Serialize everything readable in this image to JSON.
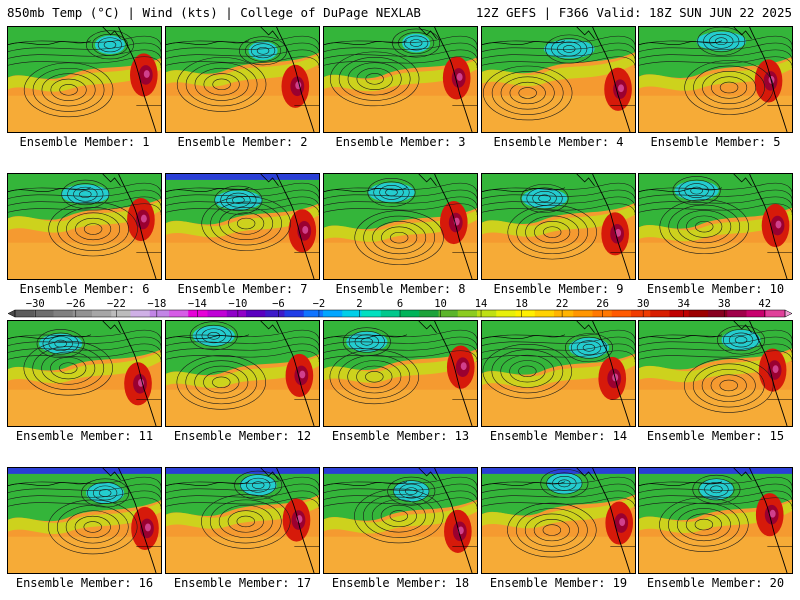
{
  "header": {
    "left": "850mb Temp (°C) | Wind (kts) | College of DuPage NEXLAB",
    "right": "12Z GEFS | F366 Valid: 18Z SUN JUN 22 2025"
  },
  "panel_caption_prefix": "Ensemble Member:",
  "members": [
    {
      "number": "1",
      "label": "Ensemble Member: 1"
    },
    {
      "number": "2",
      "label": "Ensemble Member: 2"
    },
    {
      "number": "3",
      "label": "Ensemble Member: 3"
    },
    {
      "number": "4",
      "label": "Ensemble Member: 4"
    },
    {
      "number": "5",
      "label": "Ensemble Member: 5"
    },
    {
      "number": "6",
      "label": "Ensemble Member: 6"
    },
    {
      "number": "7",
      "label": "Ensemble Member: 7"
    },
    {
      "number": "8",
      "label": "Ensemble Member: 8"
    },
    {
      "number": "9",
      "label": "Ensemble Member: 9"
    },
    {
      "number": "10",
      "label": "Ensemble Member: 10"
    },
    {
      "number": "11",
      "label": "Ensemble Member: 11"
    },
    {
      "number": "12",
      "label": "Ensemble Member: 12"
    },
    {
      "number": "13",
      "label": "Ensemble Member: 13"
    },
    {
      "number": "14",
      "label": "Ensemble Member: 14"
    },
    {
      "number": "15",
      "label": "Ensemble Member: 15"
    },
    {
      "number": "16",
      "label": "Ensemble Member: 16"
    },
    {
      "number": "17",
      "label": "Ensemble Member: 17"
    },
    {
      "number": "18",
      "label": "Ensemble Member: 18"
    },
    {
      "number": "19",
      "label": "Ensemble Member: 19"
    },
    {
      "number": "20",
      "label": "Ensemble Member: 20"
    }
  ],
  "colorbar": {
    "unit": "°C",
    "min": -32,
    "max": 44,
    "step": 2,
    "tick_labels": [
      "-30",
      "-26",
      "-22",
      "-18",
      "-14",
      "-10",
      "-6",
      "-2",
      "2",
      "6",
      "10",
      "14",
      "18",
      "22",
      "26",
      "30",
      "34",
      "38",
      "42"
    ],
    "colors": [
      "#5c5c5c",
      "#6e6e6e",
      "#808080",
      "#929292",
      "#a6a6a6",
      "#bcbcbc",
      "#cfb0e6",
      "#c285e6",
      "#d65ce6",
      "#e600d8",
      "#c000d6",
      "#9000c8",
      "#5a00c0",
      "#3d1ac9",
      "#1f3de6",
      "#0f74ff",
      "#00a6ff",
      "#00cfe8",
      "#00e0c0",
      "#00c88c",
      "#00b45a",
      "#1da33a",
      "#5bb52a",
      "#8ccc1f",
      "#bfe014",
      "#e8f00a",
      "#fff000",
      "#ffd200",
      "#ffb400",
      "#ff9600",
      "#ff7800",
      "#ff5a00",
      "#f03c00",
      "#d81e00",
      "#c00000",
      "#9c0000",
      "#880020",
      "#a0004a",
      "#c8006e",
      "#e0409a"
    ]
  }
}
